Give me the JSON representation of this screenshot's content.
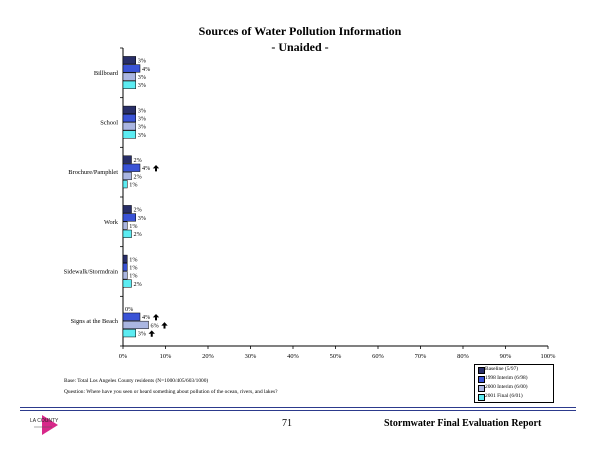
{
  "chart_data": {
    "type": "bar",
    "orientation": "horizontal",
    "title": "Sources of Water Pollution Information",
    "subtitle": "- Unaided -",
    "categories": [
      "Billboard",
      "School",
      "Brochure/Pamphlet",
      "Work",
      "Sidewalk/Stormdrain",
      "Signs at the Beach"
    ],
    "series": [
      {
        "name": "Baseline (5/97)",
        "color": "#282e68",
        "values": [
          3,
          3,
          2,
          2,
          1,
          0
        ],
        "labels": [
          "3%",
          "3%",
          "2%",
          "2%",
          "1%",
          "0%"
        ]
      },
      {
        "name": "1998 Interim (6/98)",
        "color": "#3a53d6",
        "values": [
          4,
          3,
          4,
          3,
          1,
          4
        ],
        "labels": [
          "4%",
          "3%",
          "4%",
          "3%",
          "1%",
          "4%"
        ]
      },
      {
        "name": "2000 Interim (6/00)",
        "color": "#aab6e2",
        "values": [
          3,
          3,
          2,
          1,
          1,
          6
        ],
        "labels": [
          "3%",
          "3%",
          "2%",
          "1%",
          "1%",
          "6%"
        ]
      },
      {
        "name": "2001 Final (6/01)",
        "color": "#5cecf2",
        "values": [
          3,
          3,
          1,
          2,
          2,
          3
        ],
        "labels": [
          "3%",
          "3%",
          "1%",
          "2%",
          "2%",
          "3%"
        ]
      }
    ],
    "significance_arrows": [
      {
        "category": "Brochure/Pamphlet",
        "series": "1998 Interim (6/98)"
      },
      {
        "category": "Signs at the Beach",
        "series": "1998 Interim (6/98)"
      },
      {
        "category": "Signs at the Beach",
        "series": "2000 Interim (6/00)"
      },
      {
        "category": "Signs at the Beach",
        "series": "2001 Final (6/01)"
      }
    ],
    "xlim": [
      0,
      100
    ],
    "xticks": [
      "0%",
      "10%",
      "20%",
      "30%",
      "40%",
      "50%",
      "60%",
      "70%",
      "80%",
      "90%",
      "100%"
    ],
    "grid": false,
    "legend_position": "bottom-right"
  },
  "notes": {
    "base": "Base: Total Los Angeles County residents (N=1000/405/603/1000)",
    "question": "Question: Where have you seen or heard something about pollution of the ocean, rivers, and lakes?"
  },
  "footer": {
    "logo_text": "LA COUNTY",
    "page_number": "71",
    "report_title": "Stormwater Final Evaluation Report",
    "rule_color": "#2c3a8c"
  }
}
